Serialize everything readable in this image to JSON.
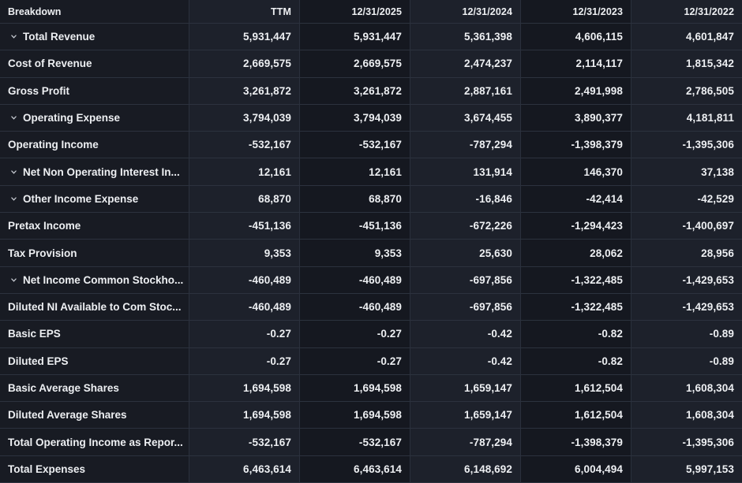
{
  "colors": {
    "col-first": "#181b23",
    "col-dark": "#151820",
    "col-light": "#1d212b",
    "border-h": "#2c323e",
    "border-v": "#2a303c",
    "text": "#edeff2",
    "chev": "#c9cdd4"
  },
  "icons": {
    "expand_indicator": "chevron-down-icon"
  },
  "table": {
    "columns": [
      {
        "id": "breakdown",
        "label": "Breakdown"
      },
      {
        "id": "ttm",
        "label": "TTM"
      },
      {
        "id": "y2025",
        "label": "12/31/2025"
      },
      {
        "id": "y2024",
        "label": "12/31/2024"
      },
      {
        "id": "y2023",
        "label": "12/31/2023"
      },
      {
        "id": "y2022",
        "label": "12/31/2022"
      }
    ],
    "rows": [
      {
        "label": "Total Revenue",
        "expandable": true,
        "values": [
          "5,931,447",
          "5,931,447",
          "5,361,398",
          "4,606,115",
          "4,601,847"
        ]
      },
      {
        "label": "Cost of Revenue",
        "expandable": false,
        "values": [
          "2,669,575",
          "2,669,575",
          "2,474,237",
          "2,114,117",
          "1,815,342"
        ]
      },
      {
        "label": "Gross Profit",
        "expandable": false,
        "values": [
          "3,261,872",
          "3,261,872",
          "2,887,161",
          "2,491,998",
          "2,786,505"
        ]
      },
      {
        "label": "Operating Expense",
        "expandable": true,
        "values": [
          "3,794,039",
          "3,794,039",
          "3,674,455",
          "3,890,377",
          "4,181,811"
        ]
      },
      {
        "label": "Operating Income",
        "expandable": false,
        "values": [
          "-532,167",
          "-532,167",
          "-787,294",
          "-1,398,379",
          "-1,395,306"
        ]
      },
      {
        "label": "Net Non Operating Interest In...",
        "expandable": true,
        "values": [
          "12,161",
          "12,161",
          "131,914",
          "146,370",
          "37,138"
        ]
      },
      {
        "label": "Other Income Expense",
        "expandable": true,
        "values": [
          "68,870",
          "68,870",
          "-16,846",
          "-42,414",
          "-42,529"
        ]
      },
      {
        "label": "Pretax Income",
        "expandable": false,
        "values": [
          "-451,136",
          "-451,136",
          "-672,226",
          "-1,294,423",
          "-1,400,697"
        ]
      },
      {
        "label": "Tax Provision",
        "expandable": false,
        "values": [
          "9,353",
          "9,353",
          "25,630",
          "28,062",
          "28,956"
        ]
      },
      {
        "label": "Net Income Common Stockho...",
        "expandable": true,
        "values": [
          "-460,489",
          "-460,489",
          "-697,856",
          "-1,322,485",
          "-1,429,653"
        ]
      },
      {
        "label": "Diluted NI Available to Com Stoc...",
        "expandable": false,
        "values": [
          "-460,489",
          "-460,489",
          "-697,856",
          "-1,322,485",
          "-1,429,653"
        ]
      },
      {
        "label": "Basic EPS",
        "expandable": false,
        "values": [
          "-0.27",
          "-0.27",
          "-0.42",
          "-0.82",
          "-0.89"
        ]
      },
      {
        "label": "Diluted EPS",
        "expandable": false,
        "values": [
          "-0.27",
          "-0.27",
          "-0.42",
          "-0.82",
          "-0.89"
        ]
      },
      {
        "label": "Basic Average Shares",
        "expandable": false,
        "values": [
          "1,694,598",
          "1,694,598",
          "1,659,147",
          "1,612,504",
          "1,608,304"
        ]
      },
      {
        "label": "Diluted Average Shares",
        "expandable": false,
        "values": [
          "1,694,598",
          "1,694,598",
          "1,659,147",
          "1,612,504",
          "1,608,304"
        ]
      },
      {
        "label": "Total Operating Income as Repor...",
        "expandable": false,
        "values": [
          "-532,167",
          "-532,167",
          "-787,294",
          "-1,398,379",
          "-1,395,306"
        ]
      },
      {
        "label": "Total Expenses",
        "expandable": false,
        "values": [
          "6,463,614",
          "6,463,614",
          "6,148,692",
          "6,004,494",
          "5,997,153"
        ]
      }
    ]
  }
}
